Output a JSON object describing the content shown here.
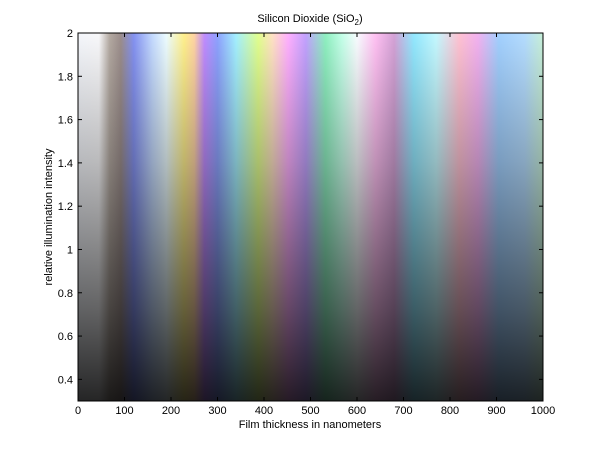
{
  "chart_data": {
    "type": "heatmap",
    "title": "Silicon Dioxide (SiO",
    "title_subscript": "2",
    "title_close": ")",
    "xlabel": "Film thickness in nanometers",
    "ylabel": "relative illumination intensity",
    "xlim": [
      0,
      1000
    ],
    "ylim": [
      0.3,
      2
    ],
    "xticks": [
      0,
      100,
      200,
      300,
      400,
      500,
      600,
      700,
      800,
      900,
      1000
    ],
    "yticks": [
      0.4,
      0.6,
      0.8,
      1,
      1.2,
      1.4,
      1.6,
      1.8,
      2
    ],
    "grid": false,
    "color_by_thickness": [
      {
        "x": 0,
        "color": "#f4f6fb"
      },
      {
        "x": 45,
        "color": "#f8f8fa"
      },
      {
        "x": 68,
        "color": "#b4aaa2"
      },
      {
        "x": 92,
        "color": "#9c8e8c"
      },
      {
        "x": 120,
        "color": "#8492f2"
      },
      {
        "x": 160,
        "color": "#c4daff"
      },
      {
        "x": 190,
        "color": "#ecfcff"
      },
      {
        "x": 228,
        "color": "#fff08c"
      },
      {
        "x": 250,
        "color": "#ffd4a4"
      },
      {
        "x": 272,
        "color": "#c08cff"
      },
      {
        "x": 300,
        "color": "#8ea2ff"
      },
      {
        "x": 340,
        "color": "#a4f0ff"
      },
      {
        "x": 388,
        "color": "#e2ff8e"
      },
      {
        "x": 418,
        "color": "#ffe2c4"
      },
      {
        "x": 452,
        "color": "#ffb0ff"
      },
      {
        "x": 490,
        "color": "#c2a2ff"
      },
      {
        "x": 532,
        "color": "#8ef0c0"
      },
      {
        "x": 568,
        "color": "#c4ffe8"
      },
      {
        "x": 600,
        "color": "#f8fcff"
      },
      {
        "x": 640,
        "color": "#ffc0f2"
      },
      {
        "x": 680,
        "color": "#d4a2d6"
      },
      {
        "x": 722,
        "color": "#92e8ff"
      },
      {
        "x": 770,
        "color": "#c4f8ff"
      },
      {
        "x": 820,
        "color": "#ffc2d2"
      },
      {
        "x": 860,
        "color": "#f2b2f0"
      },
      {
        "x": 905,
        "color": "#a2d0ff"
      },
      {
        "x": 960,
        "color": "#b4dcff"
      },
      {
        "x": 1000,
        "color": "#c8f0d8"
      }
    ],
    "brightness_scales_with": "relative illumination intensity"
  }
}
